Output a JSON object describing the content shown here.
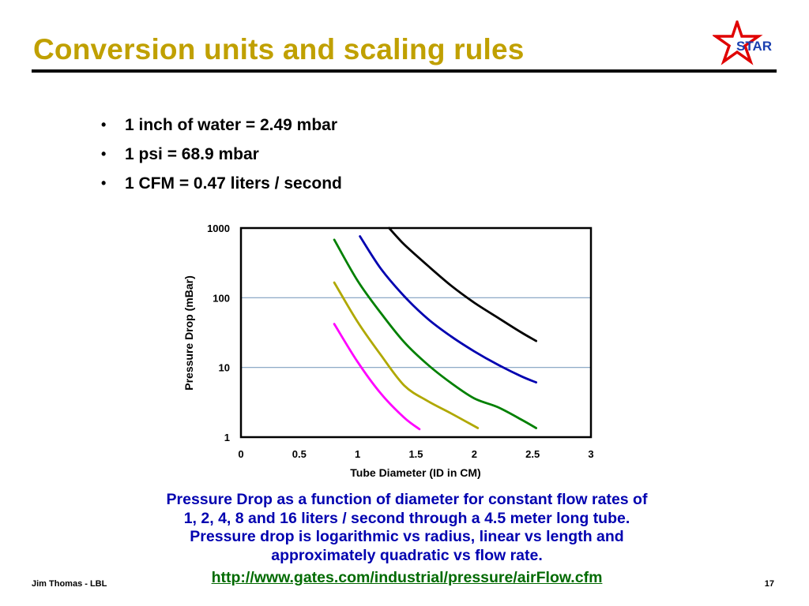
{
  "slide": {
    "title": "Conversion units and scaling rules",
    "logo_text": "STAR",
    "bullets": [
      "1 inch of water = 2.49 mbar",
      "1 psi = 68.9 mbar",
      "1 CFM = 0.47 liters / second"
    ],
    "caption_lines": [
      "Pressure Drop as a function of diameter for constant flow rates of",
      "1, 2, 4, 8 and 16 liters / second through a 4.5 meter long tube.",
      "Pressure drop is logarithmic vs radius, linear vs length and",
      "approximately quadratic vs flow rate."
    ],
    "link": "http://www.gates.com/industrial/pressure/airFlow.cfm",
    "footer_left": "Jim Thomas - LBL",
    "page_number": "17"
  },
  "colors": {
    "title": "#c0a000",
    "caption": "#0000b0",
    "link": "#006a00",
    "logo_star": "#e00000",
    "logo_text": "#1a3fb0"
  },
  "chart_data": {
    "type": "line",
    "xlabel": "Tube Diameter (ID in CM)",
    "ylabel": "Pressure Drop (mBar)",
    "xlim": [
      0,
      3
    ],
    "ylim": [
      1,
      1000
    ],
    "y_scale": "log",
    "x_ticks": [
      "0",
      "0.5",
      "1",
      "1.5",
      "2",
      "2.5",
      "3"
    ],
    "y_ticks": [
      "1",
      "10",
      "100",
      "1000"
    ],
    "grid": "horizontal",
    "legend": "none",
    "series": [
      {
        "color": "#ff00ff",
        "points": [
          [
            0.8,
            42
          ],
          [
            1.0,
            12
          ],
          [
            1.2,
            4.2
          ],
          [
            1.4,
            1.9
          ],
          [
            1.53,
            1.3
          ]
        ]
      },
      {
        "color": "#b0a800",
        "points": [
          [
            0.8,
            165
          ],
          [
            1.0,
            45
          ],
          [
            1.2,
            15
          ],
          [
            1.4,
            5.5
          ],
          [
            1.6,
            3.3
          ],
          [
            1.8,
            2.2
          ],
          [
            2.03,
            1.35
          ]
        ]
      },
      {
        "color": "#008000",
        "points": [
          [
            0.8,
            680
          ],
          [
            1.0,
            175
          ],
          [
            1.2,
            60
          ],
          [
            1.4,
            23
          ],
          [
            1.6,
            11
          ],
          [
            1.8,
            6
          ],
          [
            2.0,
            3.6
          ],
          [
            2.2,
            2.7
          ],
          [
            2.4,
            1.8
          ],
          [
            2.53,
            1.35
          ]
        ]
      },
      {
        "color": "#0000b0",
        "points": [
          [
            1.02,
            760
          ],
          [
            1.2,
            260
          ],
          [
            1.4,
            105
          ],
          [
            1.6,
            50
          ],
          [
            1.8,
            28
          ],
          [
            2.0,
            17
          ],
          [
            2.2,
            11
          ],
          [
            2.4,
            7.5
          ],
          [
            2.53,
            6.1
          ]
        ]
      },
      {
        "color": "#000000",
        "points": [
          [
            1.27,
            1000
          ],
          [
            1.4,
            580
          ],
          [
            1.6,
            290
          ],
          [
            1.8,
            150
          ],
          [
            2.0,
            85
          ],
          [
            2.2,
            52
          ],
          [
            2.4,
            32
          ],
          [
            2.53,
            24
          ]
        ]
      }
    ]
  }
}
